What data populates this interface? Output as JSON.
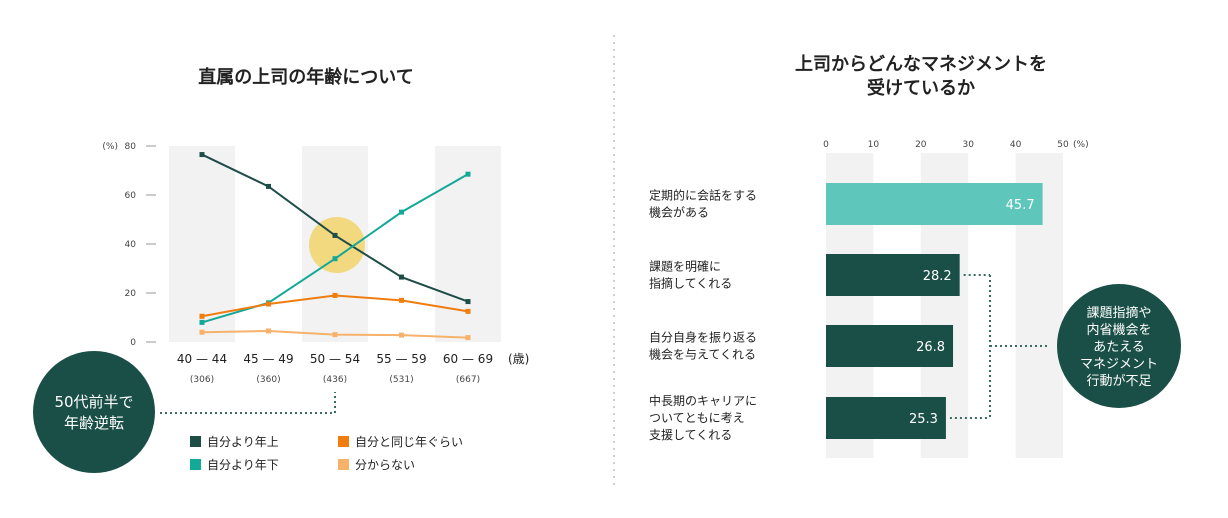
{
  "left": {
    "title": "直属の上司の年齢について",
    "unit": "(%)",
    "callout": [
      "50代前半で",
      "年齢逆転"
    ]
  },
  "right": {
    "title": [
      "上司からどんなマネジメントを",
      "受けているか"
    ],
    "unit": "(%)",
    "callout": [
      "課題指摘や",
      "内省機会を",
      "あたえる",
      "マネジメント",
      "行動が不足"
    ]
  },
  "chart_data": [
    {
      "type": "line",
      "title": "直属の上司の年齢について",
      "ylabel": "(%)",
      "ylim": [
        0,
        80
      ],
      "yticks": [
        0,
        20,
        40,
        60,
        80
      ],
      "categories": [
        "40 — 44",
        "45 — 49",
        "50 — 54",
        "55 — 59",
        "60 — 69"
      ],
      "category_counts": [
        "(306)",
        "(360)",
        "(436)",
        "(531)",
        "(667)"
      ],
      "x_unit": "(歳)",
      "series": [
        {
          "name": "自分より年上",
          "color": "#1d4d46",
          "values": [
            76.5,
            63.5,
            43.5,
            26.5,
            16.5
          ]
        },
        {
          "name": "自分より年下",
          "color": "#14a898",
          "values": [
            8,
            16,
            34,
            53,
            68.5
          ]
        },
        {
          "name": "自分と同じ年ぐらい",
          "color": "#ef7d0f",
          "values": [
            10.5,
            15.5,
            19,
            17,
            12.5
          ]
        },
        {
          "name": "分からない",
          "color": "#f6b26b",
          "values": [
            4,
            4.5,
            3,
            2.8,
            1.8
          ]
        }
      ],
      "legend": [
        "自分より年上",
        "自分と同じ年ぐらい",
        "自分より年下",
        "分からない"
      ],
      "grid": false,
      "legend_position": "bottom",
      "highlight_color": "#f2d36b"
    },
    {
      "type": "bar",
      "orientation": "horizontal",
      "title": "上司からどんなマネジメントを受けているか",
      "xlabel": "(%)",
      "xlim": [
        0,
        50
      ],
      "xticks": [
        0,
        10,
        20,
        30,
        40,
        50
      ],
      "categories": [
        [
          "定期的に会話をする",
          "機会がある"
        ],
        [
          "課題を明確に",
          "指摘してくれる"
        ],
        [
          "自分自身を振り返る",
          "機会を与えてくれる"
        ],
        [
          "中長期のキャリアに",
          "ついてともに考え",
          "支援してくれる"
        ]
      ],
      "values": [
        45.7,
        28.2,
        26.8,
        25.3
      ],
      "value_labels": [
        "45.7",
        "28.2",
        "26.8",
        "25.3"
      ],
      "colors": [
        "#5fc6bb",
        "#1a4f47",
        "#1a4f47",
        "#1a4f47"
      ]
    }
  ],
  "colors": {
    "dark_green": "#1a4f47",
    "teal": "#14a898",
    "light_teal": "#5fc6bb",
    "orange": "#ef7d0f",
    "light_orange": "#f6b26b",
    "band_gray": "#f2f2f2",
    "divider_gray": "#d0d0d0"
  }
}
